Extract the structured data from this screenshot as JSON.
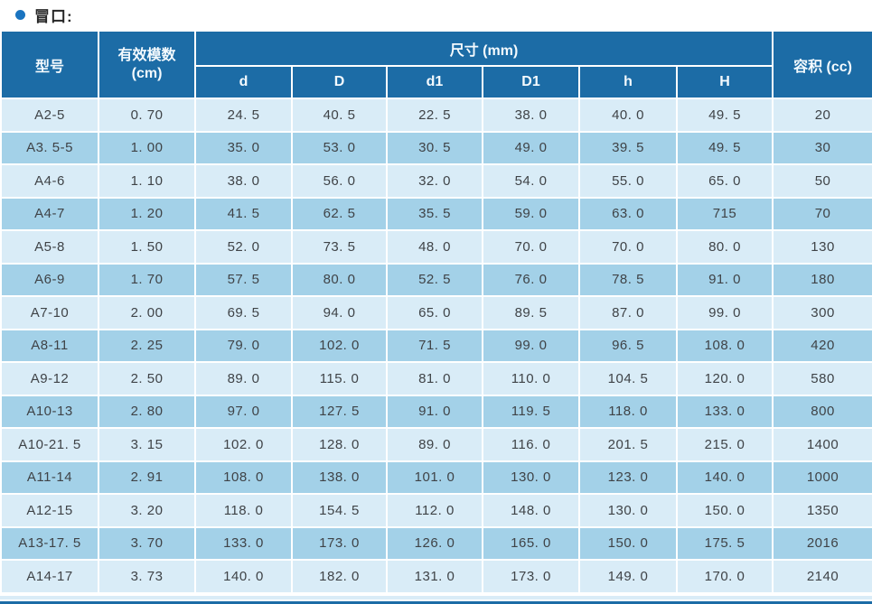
{
  "page": {
    "bullet_glyph": "●",
    "title": "冒口:"
  },
  "colors": {
    "header_bg": "#1c6ca6",
    "row_light": "#d9ecf7",
    "row_medium": "#a3d1e8",
    "bullet_blue": "#1a74c0",
    "body_text": "#3f4347",
    "header_text": "#f4fafe"
  },
  "table": {
    "headers": {
      "model": "型号",
      "modulus_line1": "有效模数",
      "modulus_line2": "(cm)",
      "size_group": "尺寸 (mm)",
      "size_cols": [
        "d",
        "D",
        "d1",
        "D1",
        "h",
        "H"
      ],
      "volume": "容积 (cc)"
    },
    "column_keys": [
      "model",
      "modulus",
      "d",
      "D",
      "d1",
      "D1",
      "h",
      "H",
      "volume"
    ],
    "rows": [
      [
        "A2-5",
        "0. 70",
        "24. 5",
        "40. 5",
        "22. 5",
        "38. 0",
        "40. 0",
        "49. 5",
        "20"
      ],
      [
        "A3. 5-5",
        "1. 00",
        "35. 0",
        "53. 0",
        "30. 5",
        "49. 0",
        "39. 5",
        "49. 5",
        "30"
      ],
      [
        "A4-6",
        "1. 10",
        "38. 0",
        "56. 0",
        "32. 0",
        "54. 0",
        "55. 0",
        "65. 0",
        "50"
      ],
      [
        "A4-7",
        "1. 20",
        "41. 5",
        "62. 5",
        "35. 5",
        "59. 0",
        "63. 0",
        "715",
        "70"
      ],
      [
        "A5-8",
        "1. 50",
        "52. 0",
        "73. 5",
        "48. 0",
        "70. 0",
        "70. 0",
        "80. 0",
        "130"
      ],
      [
        "A6-9",
        "1. 70",
        "57. 5",
        "80. 0",
        "52. 5",
        "76. 0",
        "78. 5",
        "91. 0",
        "180"
      ],
      [
        "A7-10",
        "2. 00",
        "69. 5",
        "94. 0",
        "65. 0",
        "89. 5",
        "87. 0",
        "99. 0",
        "300"
      ],
      [
        "A8-11",
        "2. 25",
        "79. 0",
        "102. 0",
        "71. 5",
        "99. 0",
        "96. 5",
        "108. 0",
        "420"
      ],
      [
        "A9-12",
        "2. 50",
        "89. 0",
        "115. 0",
        "81. 0",
        "110. 0",
        "104. 5",
        "120. 0",
        "580"
      ],
      [
        "A10-13",
        "2. 80",
        "97. 0",
        "127. 5",
        "91. 0",
        "119. 5",
        "118. 0",
        "133. 0",
        "800"
      ],
      [
        "A10-21. 5",
        "3. 15",
        "102. 0",
        "128. 0",
        "89. 0",
        "116. 0",
        "201. 5",
        "215. 0",
        "1400"
      ],
      [
        "A11-14",
        "2. 91",
        "108. 0",
        "138. 0",
        "101. 0",
        "130. 0",
        "123. 0",
        "140. 0",
        "1000"
      ],
      [
        "A12-15",
        "3. 20",
        "118. 0",
        "154. 5",
        "112. 0",
        "148. 0",
        "130. 0",
        "150. 0",
        "1350"
      ],
      [
        "A13-17. 5",
        "3. 70",
        "133. 0",
        "173. 0",
        "126. 0",
        "165. 0",
        "150. 0",
        "175. 5",
        "2016"
      ],
      [
        "A14-17",
        "3. 73",
        "140. 0",
        "182. 0",
        "131. 0",
        "173. 0",
        "149. 0",
        "170. 0",
        "2140"
      ]
    ]
  }
}
